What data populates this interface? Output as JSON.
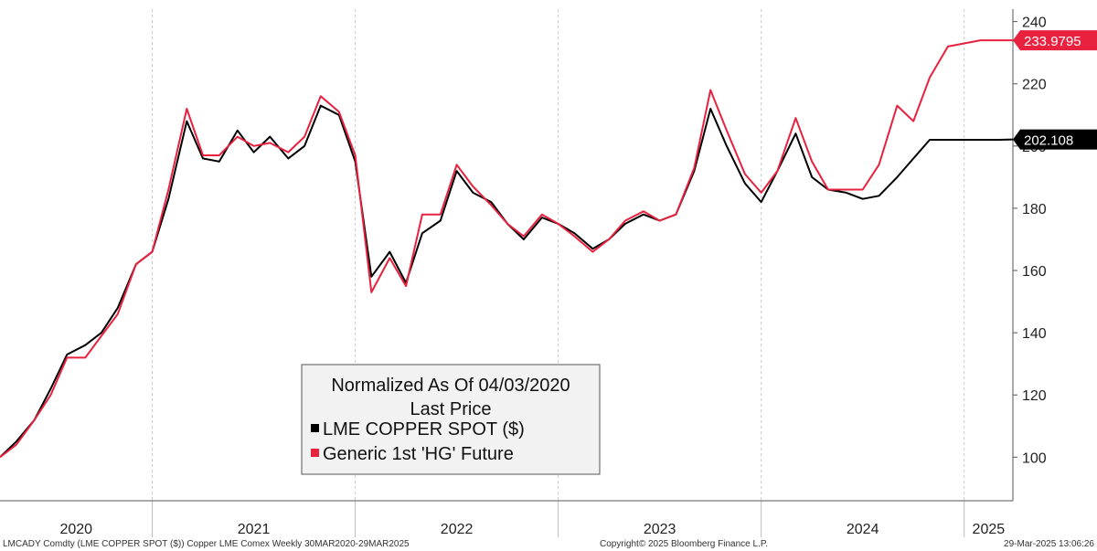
{
  "chart_data": {
    "type": "line",
    "y_axis": {
      "ylim": [
        86,
        244
      ],
      "ticks": [
        100,
        120,
        140,
        160,
        180,
        200,
        220,
        240
      ],
      "side": "right",
      "grid": "vertical-dashed"
    },
    "x_axis": {
      "range": [
        "2020-03-30",
        "2025-03-29"
      ],
      "year_labels": [
        "2020",
        "2021",
        "2022",
        "2023",
        "2024",
        "2025"
      ]
    },
    "legend": {
      "placement": "bottom-center",
      "title_line1": "Normalized As Of 04/03/2020",
      "title_line2": "Last Price",
      "entries": [
        "LME COPPER SPOT ($)",
        "Generic 1st 'HG' Future"
      ]
    },
    "last_value_tags": [
      {
        "series": "Generic 1st 'HG' Future",
        "text": "233.9795",
        "color": "#e8213f"
      },
      {
        "series": "LME COPPER SPOT ($)",
        "text": "202.108",
        "color": "#000000"
      }
    ],
    "footer": {
      "left": "LMCADY Comdty (LME COPPER   SPOT ($)) Copper LME Comex  Weekly 30MAR2020-29MAR2025",
      "center": "Copyright© 2025 Bloomberg Finance L.P.",
      "right": "29-Mar-2025 13:06:26"
    },
    "colors": {
      "lme": "#000000",
      "hg": "#e8213f",
      "legend_bg": "#f2f2f2"
    },
    "x": [
      2020.25,
      2020.33,
      2020.42,
      2020.5,
      2020.58,
      2020.67,
      2020.75,
      2020.83,
      2020.92,
      2021.0,
      2021.08,
      2021.17,
      2021.25,
      2021.33,
      2021.42,
      2021.5,
      2021.58,
      2021.67,
      2021.75,
      2021.83,
      2021.92,
      2022.0,
      2022.08,
      2022.17,
      2022.25,
      2022.33,
      2022.42,
      2022.5,
      2022.58,
      2022.67,
      2022.75,
      2022.83,
      2022.92,
      2023.0,
      2023.08,
      2023.17,
      2023.25,
      2023.33,
      2023.42,
      2023.5,
      2023.58,
      2023.67,
      2023.75,
      2023.83,
      2023.92,
      2024.0,
      2024.08,
      2024.17,
      2024.25,
      2024.33,
      2024.42,
      2024.5,
      2024.58,
      2024.67,
      2024.75,
      2024.83,
      2024.92,
      2025.0,
      2025.08,
      2025.17,
      2025.24
    ],
    "series": [
      {
        "name": "LME COPPER SPOT ($)",
        "color": "#000000",
        "values": [
          100,
          105,
          112,
          122,
          133,
          136,
          140,
          148,
          162,
          166,
          183,
          208,
          196,
          195,
          205,
          198,
          203,
          196,
          200,
          213,
          210,
          195,
          158,
          166,
          156,
          172,
          176,
          192,
          185,
          182,
          175,
          170,
          177,
          175,
          172,
          167,
          170,
          175,
          178,
          176,
          178,
          192,
          212,
          200,
          188,
          182,
          192,
          204,
          190,
          186,
          185,
          183,
          184,
          190,
          196,
          202,
          202,
          202,
          202,
          202,
          202.108
        ]
      },
      {
        "name": "Generic 1st 'HG' Future",
        "color": "#e8213f",
        "values": [
          100,
          104,
          112,
          120,
          132,
          132,
          139,
          146,
          162,
          166,
          186,
          212,
          197,
          197,
          203,
          200,
          201,
          198,
          203,
          216,
          211,
          197,
          153,
          164,
          155,
          178,
          178,
          194,
          187,
          181,
          175,
          171,
          178,
          175,
          171,
          166,
          170,
          176,
          179,
          176,
          178,
          193,
          218,
          205,
          191,
          185,
          192,
          209,
          195,
          186,
          186,
          186,
          194,
          213,
          208,
          222,
          232,
          233,
          234,
          234,
          233.9795
        ]
      }
    ]
  }
}
